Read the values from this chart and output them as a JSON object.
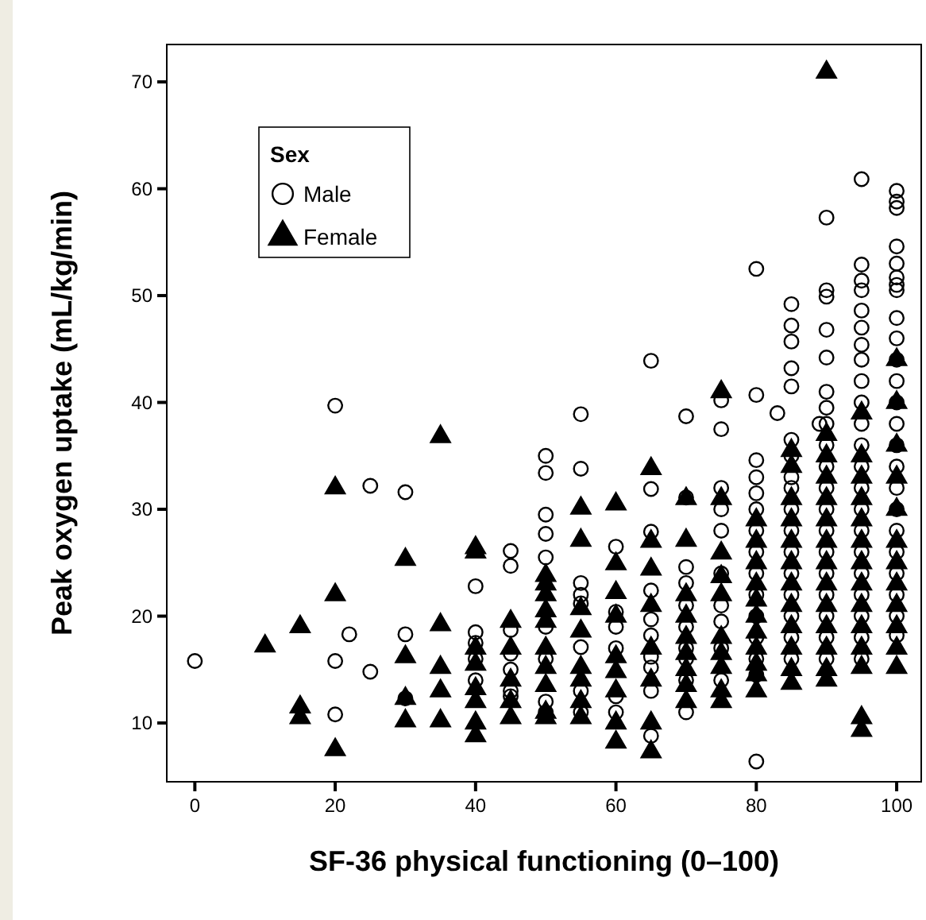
{
  "chart_data": {
    "type": "scatter",
    "xlabel": "SF-36 physical functioning (0–100)",
    "ylabel": "Peak oxygen uptake (mL/kg/min)",
    "legend_title": "Sex",
    "legend": "top left",
    "grid": false,
    "xlim": [
      -4,
      103.5
    ],
    "ylim": [
      4.5,
      73.5
    ],
    "xticks": [
      0,
      20,
      40,
      60,
      80,
      100
    ],
    "yticks": [
      10,
      20,
      30,
      40,
      50,
      60,
      70
    ],
    "series": [
      {
        "name": "Male",
        "color": "#000000",
        "marker": "circle",
        "x": [
          0,
          20,
          20,
          20,
          22,
          25,
          25,
          30,
          30,
          30,
          40,
          40,
          40,
          40,
          40,
          45,
          45,
          45,
          45,
          45,
          45,
          45,
          50,
          50,
          50,
          50,
          50,
          50,
          50,
          50,
          50,
          55,
          55,
          55,
          55,
          55,
          55,
          55,
          55,
          60,
          60,
          60,
          60,
          60,
          60,
          65,
          65,
          65,
          65,
          65,
          65,
          65,
          65,
          65,
          65,
          70,
          70,
          70,
          70,
          70,
          70,
          70,
          70,
          70,
          70,
          75,
          75,
          75,
          75,
          75,
          75,
          75,
          75,
          75,
          75,
          80,
          80,
          80,
          80,
          80,
          80,
          80,
          80,
          80,
          80,
          80,
          80,
          80,
          80,
          80,
          83,
          85,
          85,
          85,
          85,
          85,
          85,
          85,
          85,
          85,
          85,
          85,
          85,
          85,
          85,
          85,
          85,
          85,
          89,
          90,
          90,
          90,
          90,
          90,
          90,
          90,
          90,
          90,
          90,
          90,
          90,
          90,
          90,
          90,
          90,
          90,
          90,
          90,
          95,
          95,
          95,
          95,
          95,
          95,
          95,
          95,
          95,
          95,
          95,
          95,
          95,
          95,
          95,
          95,
          95,
          95,
          95,
          95,
          95,
          95,
          100,
          100,
          100,
          100,
          100,
          100,
          100,
          100,
          100,
          100,
          100,
          100,
          100,
          100,
          100,
          100,
          100,
          100,
          100,
          100,
          100,
          100,
          100,
          100
        ],
        "values": [
          15.8,
          39.7,
          15.8,
          10.8,
          18.3,
          32.2,
          14.8,
          31.6,
          18.3,
          12.3,
          22.8,
          18.5,
          17.5,
          16,
          14,
          26.1,
          24.7,
          18.7,
          16.5,
          15,
          13,
          12.5,
          35,
          33.4,
          29.5,
          27.7,
          25.5,
          19,
          16,
          12,
          11,
          38.9,
          33.8,
          23.1,
          22,
          21.2,
          17.1,
          13,
          11,
          26.5,
          20.4,
          19,
          17,
          12.5,
          11,
          43.9,
          31.9,
          27.9,
          22.4,
          19.7,
          18.2,
          16.2,
          15.2,
          13,
          8.8,
          38.7,
          31.1,
          24.6,
          23.1,
          21,
          19,
          17,
          16,
          14,
          11,
          40.2,
          37.5,
          32,
          30,
          28,
          24,
          21,
          19.5,
          17,
          14,
          52.5,
          40.7,
          34.6,
          33,
          31.5,
          30,
          28,
          26,
          24,
          22,
          20,
          18,
          16,
          14.5,
          6.4,
          39,
          49.2,
          47.2,
          45.7,
          43.2,
          41.5,
          36.5,
          35,
          33,
          32,
          30,
          28,
          26,
          24,
          22,
          20,
          18,
          16,
          38,
          57.3,
          50.5,
          49.9,
          46.8,
          44.2,
          41,
          39.5,
          38,
          36,
          34,
          32,
          30,
          28,
          26,
          24,
          22,
          20,
          18,
          16,
          60.9,
          52.9,
          51.4,
          50.5,
          48.6,
          47,
          45.4,
          44,
          42,
          40,
          38,
          36,
          34,
          32,
          30,
          28,
          26,
          24,
          22,
          20,
          18,
          16,
          59.8,
          58.8,
          58.2,
          54.6,
          53,
          51.7,
          51,
          50.5,
          47.9,
          46,
          44,
          42,
          40,
          38,
          36,
          34,
          32,
          30,
          28,
          26,
          24,
          22,
          20,
          18.2
        ]
      },
      {
        "name": "Female",
        "color": "#000000",
        "marker": "triangle",
        "x": [
          10,
          15,
          15,
          15,
          20,
          20,
          20,
          30,
          30,
          30,
          30,
          35,
          35,
          35,
          35,
          35,
          40,
          40,
          40,
          40,
          40,
          40,
          40,
          40,
          45,
          45,
          45,
          45,
          45,
          50,
          50,
          50,
          50,
          50,
          50,
          50,
          50,
          50,
          50,
          55,
          55,
          55,
          55,
          55,
          55,
          55,
          55,
          60,
          60,
          60,
          60,
          60,
          60,
          60,
          60,
          60,
          65,
          65,
          65,
          65,
          65,
          65,
          65,
          65,
          70,
          70,
          70,
          70,
          70,
          70,
          70,
          70,
          70,
          75,
          75,
          75,
          75,
          75,
          75,
          75,
          75,
          75,
          75,
          80,
          80,
          80,
          80,
          80,
          80,
          80,
          80,
          80,
          80,
          80,
          85,
          85,
          85,
          85,
          85,
          85,
          85,
          85,
          85,
          85,
          85,
          85,
          90,
          90,
          90,
          90,
          90,
          90,
          90,
          90,
          90,
          90,
          90,
          90,
          90,
          90,
          95,
          95,
          95,
          95,
          95,
          95,
          95,
          95,
          95,
          95,
          95,
          95,
          95,
          95,
          100,
          100,
          100,
          100,
          100,
          100,
          100,
          100,
          100,
          100,
          100,
          100
        ],
        "values": [
          17.2,
          19,
          11.5,
          10.5,
          32,
          22,
          7.5,
          25.3,
          16.2,
          12.3,
          10.2,
          36.8,
          19.2,
          15.2,
          13,
          10.2,
          26.4,
          26,
          17,
          15.5,
          13.2,
          12,
          10,
          8.8,
          19.5,
          17,
          14,
          12,
          10.5,
          23.8,
          23,
          22,
          20.5,
          19.5,
          17,
          15.2,
          13.5,
          11,
          10.5,
          30.1,
          27.1,
          20.7,
          18.6,
          15.2,
          14,
          12,
          10.5,
          30.5,
          24.9,
          22.2,
          20,
          16.2,
          14.8,
          13,
          10,
          8.2,
          33.8,
          27,
          24.4,
          21,
          17,
          14,
          10,
          7.3,
          31,
          27.1,
          22,
          20,
          18,
          16.5,
          15,
          13.5,
          12,
          41,
          31,
          25.9,
          23.7,
          22,
          18,
          16.5,
          15.2,
          13,
          12,
          29,
          27,
          25,
          23,
          21.5,
          20,
          18.5,
          17,
          15.5,
          14.5,
          13,
          35.5,
          34,
          31,
          29,
          27,
          25,
          23,
          21,
          19,
          17,
          15,
          13.7,
          70.9,
          37,
          35,
          33,
          31,
          29,
          27,
          25,
          23,
          21,
          19,
          17,
          15,
          14,
          39,
          35,
          33,
          31,
          29,
          27,
          25,
          23,
          21,
          19,
          17,
          15.2,
          10.5,
          9.3,
          44,
          40,
          36,
          33,
          30,
          27,
          25,
          23,
          21,
          19,
          17,
          15.2
        ]
      }
    ]
  }
}
